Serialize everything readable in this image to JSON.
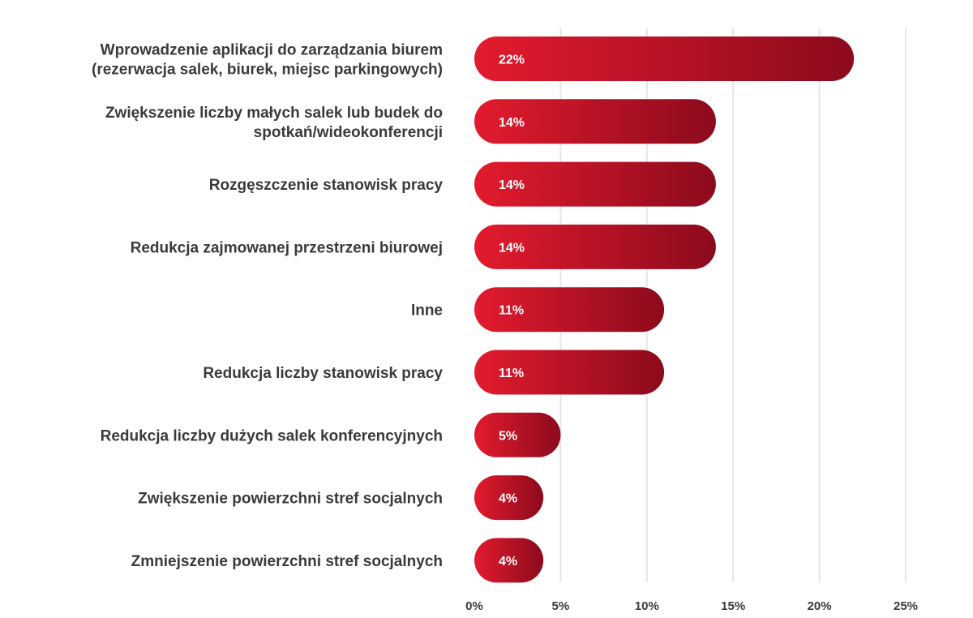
{
  "chart_data": {
    "type": "bar",
    "orientation": "horizontal",
    "categories": [
      [
        "Wprowadzenie aplikacji do zarządzania biurem",
        "(rezerwacja salek, biurek, miejsc parkingowych)"
      ],
      [
        "Zwiększenie liczby małych salek lub budek do",
        "spotkań/wideokonferencji"
      ],
      [
        "Rozgęszczenie stanowisk pracy"
      ],
      [
        "Redukcja zajmowanej przestrzeni biurowej"
      ],
      [
        "Inne"
      ],
      [
        "Redukcja liczby stanowisk pracy"
      ],
      [
        "Redukcja liczby dużych salek konferencyjnych"
      ],
      [
        "Zwiększenie powierzchni stref socjalnych"
      ],
      [
        "Zmniejszenie powierzchni stref socjalnych"
      ]
    ],
    "values": [
      22,
      14,
      14,
      14,
      11,
      11,
      5,
      4,
      4
    ],
    "value_labels": [
      "22%",
      "14%",
      "14%",
      "14%",
      "11%",
      "11%",
      "5%",
      "4%",
      "4%"
    ],
    "xlim": [
      0,
      25
    ],
    "xticks": [
      0,
      5,
      10,
      15,
      20,
      25
    ],
    "xtick_labels": [
      "0%",
      "5%",
      "10%",
      "15%",
      "20%",
      "25%"
    ],
    "grid": "vertical",
    "legend": "none",
    "title": "",
    "xlabel": "",
    "ylabel": "",
    "colors": {
      "bar_start": "#e31b2e",
      "bar_end": "#8c0a1d",
      "grid": "#e6e6e6",
      "text": "#3a3a3a",
      "value_text": "#ffffff"
    }
  }
}
